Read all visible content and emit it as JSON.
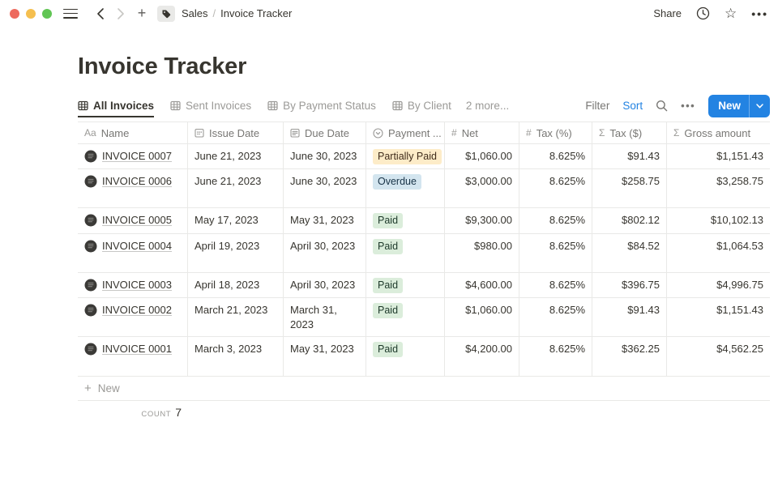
{
  "topbar": {
    "breadcrumb": {
      "workspace": "Sales",
      "separator": "/",
      "page": "Invoice Tracker"
    },
    "share_label": "Share"
  },
  "page": {
    "title": "Invoice Tracker"
  },
  "toolbar": {
    "tabs": [
      {
        "label": "All Invoices",
        "active": true
      },
      {
        "label": "Sent Invoices",
        "active": false
      },
      {
        "label": "By Payment Status",
        "active": false
      },
      {
        "label": "By Client",
        "active": false
      }
    ],
    "more_views": "2 more...",
    "filter_label": "Filter",
    "sort_label": "Sort",
    "new_label": "New"
  },
  "table": {
    "columns": [
      {
        "label": "Name",
        "icon": "text-icon"
      },
      {
        "label": "Issue Date",
        "icon": "calendar-icon"
      },
      {
        "label": "Due Date",
        "icon": "page-icon"
      },
      {
        "label": "Payment ...",
        "icon": "status-icon"
      },
      {
        "label": "Net",
        "icon": "number-icon"
      },
      {
        "label": "Tax (%)",
        "icon": "number-icon"
      },
      {
        "label": "Tax ($)",
        "icon": "formula-icon"
      },
      {
        "label": "Gross amount",
        "icon": "formula-icon"
      }
    ],
    "rows": [
      {
        "name": "INVOICE 0007",
        "issue_date": "June 21, 2023",
        "due_date": "June 30, 2023",
        "payment_status": "Partially Paid",
        "status_color": "yellow",
        "net": "$1,060.00",
        "tax_pct": "8.625%",
        "tax_usd": "$91.43",
        "gross": "$1,151.43"
      },
      {
        "name": "INVOICE 0006",
        "issue_date": "June 21, 2023",
        "due_date": "June 30, 2023",
        "payment_status": "Overdue",
        "status_color": "blue",
        "net": "$3,000.00",
        "tax_pct": "8.625%",
        "tax_usd": "$258.75",
        "gross": "$3,258.75"
      },
      {
        "name": "INVOICE 0005",
        "issue_date": "May 17, 2023",
        "due_date": "May 31, 2023",
        "payment_status": "Paid",
        "status_color": "green",
        "net": "$9,300.00",
        "tax_pct": "8.625%",
        "tax_usd": "$802.12",
        "gross": "$10,102.13"
      },
      {
        "name": "INVOICE 0004",
        "issue_date": "April 19, 2023",
        "due_date": "April 30, 2023",
        "payment_status": "Paid",
        "status_color": "green",
        "net": "$980.00",
        "tax_pct": "8.625%",
        "tax_usd": "$84.52",
        "gross": "$1,064.53"
      },
      {
        "name": "INVOICE 0003",
        "issue_date": "April 18, 2023",
        "due_date": "April 30, 2023",
        "payment_status": "Paid",
        "status_color": "green",
        "net": "$4,600.00",
        "tax_pct": "8.625%",
        "tax_usd": "$396.75",
        "gross": "$4,996.75"
      },
      {
        "name": "INVOICE 0002",
        "issue_date": "March 21, 2023",
        "due_date": "March 31, 2023",
        "payment_status": "Paid",
        "status_color": "green",
        "net": "$1,060.00",
        "tax_pct": "8.625%",
        "tax_usd": "$91.43",
        "gross": "$1,151.43"
      },
      {
        "name": "INVOICE 0001",
        "issue_date": "March 3, 2023",
        "due_date": "May 31, 2023",
        "payment_status": "Paid",
        "status_color": "green",
        "net": "$4,200.00",
        "tax_pct": "8.625%",
        "tax_usd": "$362.25",
        "gross": "$4,562.25"
      }
    ],
    "new_row_label": "New",
    "count_label": "count",
    "count_value": "7"
  },
  "colors": {
    "accent": "#2383e2",
    "badge_yellow": "#fdecc8",
    "badge_blue": "#d3e5ef",
    "badge_green": "#dbeddb",
    "traffic_red": "#ed6a5e",
    "traffic_yellow": "#f5bf4f",
    "traffic_green": "#61c554"
  }
}
